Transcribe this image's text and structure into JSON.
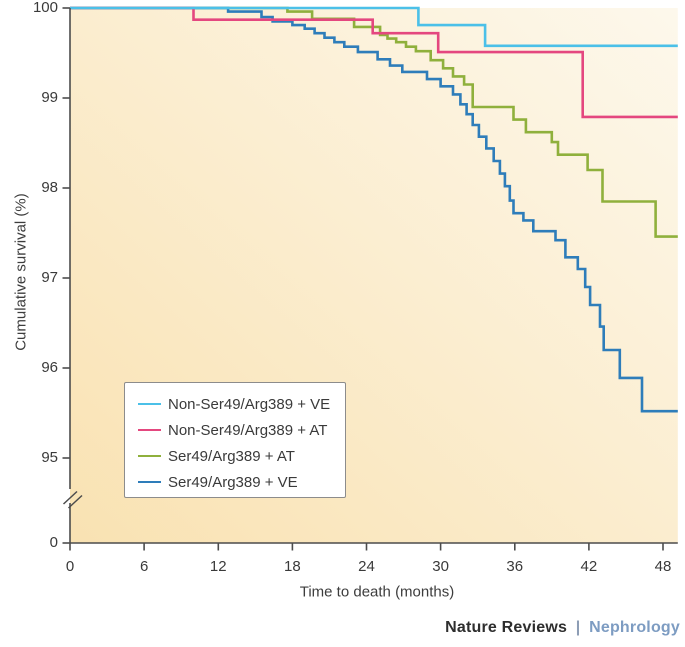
{
  "branding": {
    "publisher": "Nature Reviews",
    "separator": "|",
    "journal": "Nephrology",
    "publisher_color": "#2e2e2e",
    "separator_color": "#8d9db5",
    "journal_color": "#7d9cc2"
  },
  "chart_data": {
    "type": "line",
    "variant": "kaplan-meier-step-survival",
    "title": "",
    "xlabel": "Time to death (months)",
    "ylabel": "Cumulative survival (%)",
    "x_ticks": [
      0,
      6,
      12,
      18,
      24,
      30,
      36,
      42,
      48
    ],
    "y_ticks": [
      100,
      99,
      98,
      97,
      96,
      95
    ],
    "y_zero_label": "0",
    "y_axis_break": true,
    "xlim": [
      0,
      49.2
    ],
    "ylim_zoomed": [
      95,
      100
    ],
    "grid": false,
    "axis_color": "#4c4c4c",
    "label_color": "#3a3a3a",
    "plot_background": {
      "from": "#f9e2b2",
      "to": "#fdf8ec",
      "direction": "bottom-left to top-right"
    },
    "legend": {
      "position": "lower-left",
      "border_color": "#8c8c8c",
      "background": "#ffffff"
    },
    "series": [
      {
        "id": "non-ser49-arg389-ve",
        "name": "Non-Ser49/Arg389 + VE",
        "color": "#4bc0e8",
        "z": 4,
        "points": [
          [
            0,
            100
          ],
          [
            28.2,
            99.81
          ],
          [
            33.6,
            99.58
          ]
        ]
      },
      {
        "id": "non-ser49-arg389-at",
        "name": "Non-Ser49/Arg389 + AT",
        "color": "#e4477f",
        "z": 3,
        "points": [
          [
            0,
            100
          ],
          [
            10,
            99.87
          ],
          [
            24.5,
            99.72
          ],
          [
            29.8,
            99.51
          ],
          [
            41.5,
            98.79
          ]
        ]
      },
      {
        "id": "ser49-arg389-at",
        "name": "Ser49/Arg389 + AT",
        "color": "#8fb03c",
        "z": 1,
        "points": [
          [
            0,
            100
          ],
          [
            17.6,
            99.96
          ],
          [
            19.6,
            99.88
          ],
          [
            23,
            99.79
          ],
          [
            25.1,
            99.7
          ],
          [
            25.7,
            99.66
          ],
          [
            26.4,
            99.62
          ],
          [
            27.2,
            99.57
          ],
          [
            28,
            99.52
          ],
          [
            29.2,
            99.42
          ],
          [
            30.2,
            99.33
          ],
          [
            31,
            99.24
          ],
          [
            31.9,
            99.15
          ],
          [
            32.6,
            98.9
          ],
          [
            35.9,
            98.76
          ],
          [
            36.9,
            98.62
          ],
          [
            39,
            98.51
          ],
          [
            39.5,
            98.37
          ],
          [
            41.9,
            98.2
          ],
          [
            43.1,
            97.85
          ],
          [
            47.4,
            97.46
          ]
        ]
      },
      {
        "id": "ser49-arg389-ve",
        "name": "Ser49/Arg389 + VE",
        "color": "#2e7dba",
        "z": 2,
        "points": [
          [
            0,
            100
          ],
          [
            12.8,
            99.96
          ],
          [
            15.5,
            99.9
          ],
          [
            16.4,
            99.85
          ],
          [
            18,
            99.81
          ],
          [
            19,
            99.77
          ],
          [
            19.8,
            99.72
          ],
          [
            20.6,
            99.67
          ],
          [
            21.4,
            99.62
          ],
          [
            22.2,
            99.57
          ],
          [
            23.3,
            99.51
          ],
          [
            24.9,
            99.43
          ],
          [
            25.9,
            99.36
          ],
          [
            26.9,
            99.29
          ],
          [
            28.9,
            99.21
          ],
          [
            30,
            99.13
          ],
          [
            31,
            99.04
          ],
          [
            31.6,
            98.93
          ],
          [
            32.1,
            98.82
          ],
          [
            32.6,
            98.7
          ],
          [
            33.1,
            98.57
          ],
          [
            33.7,
            98.44
          ],
          [
            34.3,
            98.3
          ],
          [
            34.8,
            98.16
          ],
          [
            35.2,
            98.02
          ],
          [
            35.6,
            97.86
          ],
          [
            35.9,
            97.72
          ],
          [
            36.7,
            97.64
          ],
          [
            37.5,
            97.52
          ],
          [
            39.3,
            97.42
          ],
          [
            40.1,
            97.23
          ],
          [
            41.1,
            97.1
          ],
          [
            41.7,
            96.9
          ],
          [
            42.1,
            96.7
          ],
          [
            42.9,
            96.46
          ],
          [
            43.2,
            96.2
          ],
          [
            44.5,
            95.89
          ],
          [
            46.3,
            95.52
          ]
        ]
      }
    ]
  }
}
